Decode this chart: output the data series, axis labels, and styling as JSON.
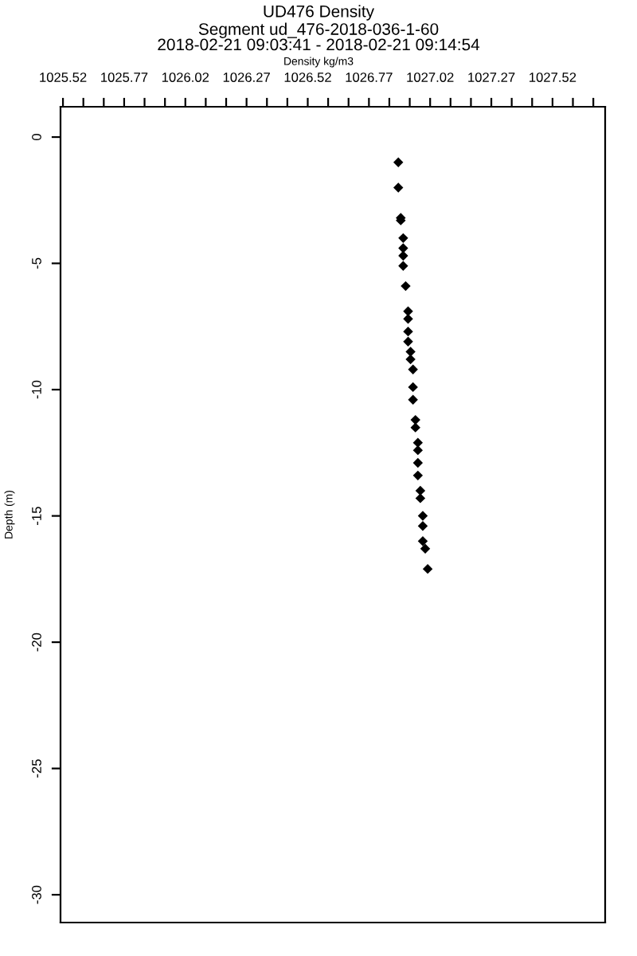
{
  "chart_data": {
    "type": "scatter",
    "title": "UD476 Density",
    "subtitle": "Segment ud_476-2018-036-1-60\n2018-02-21 09:03:41 - 2018-02-21 09:14:54",
    "xlabel": "Density kg/m3",
    "ylabel": "Depth (m)",
    "x": [
      1026.89,
      1026.89,
      1026.9,
      1026.9,
      1026.91,
      1026.91,
      1026.91,
      1026.91,
      1026.92,
      1026.93,
      1026.93,
      1026.93,
      1026.93,
      1026.94,
      1026.94,
      1026.95,
      1026.95,
      1026.95,
      1026.96,
      1026.96,
      1026.97,
      1026.97,
      1026.97,
      1026.97,
      1026.98,
      1026.98,
      1026.99,
      1026.99,
      1026.99,
      1027.0,
      1027.01
    ],
    "series": [
      {
        "color": "#000000",
        "values": [
          -1.0,
          -2.0,
          -3.2,
          -3.3,
          -4.0,
          -4.4,
          -4.7,
          -5.1,
          -5.9,
          -6.9,
          -7.2,
          -7.7,
          -8.1,
          -8.5,
          -8.8,
          -9.2,
          -9.9,
          -10.4,
          -11.2,
          -11.5,
          -12.1,
          -12.4,
          -12.9,
          -13.4,
          -14.0,
          -14.3,
          -15.0,
          -15.4,
          -16.0,
          -16.3,
          -17.1
        ]
      }
    ],
    "xlim": [
      1025.51,
      1027.735
    ],
    "ylim": [
      -31.1,
      1.2
    ],
    "xticks": [
      1025.52,
      {
        "value": 1025.6033,
        "label": null
      },
      {
        "value": 1025.6867,
        "label": null
      },
      1025.77,
      {
        "value": 1025.8533,
        "label": null
      },
      {
        "value": 1025.9367,
        "label": null
      },
      {
        "value": 1026.02,
        "label": "1026.02"
      },
      {
        "value": 1026.1033,
        "label": null
      },
      {
        "value": 1026.1867,
        "label": null
      },
      1026.27,
      {
        "value": 1026.3533,
        "label": null
      },
      {
        "value": 1026.4367,
        "label": null
      },
      1026.52,
      {
        "value": 1026.6033,
        "label": null
      },
      {
        "value": 1026.6867,
        "label": null
      },
      1026.77,
      {
        "value": 1026.8533,
        "label": null
      },
      {
        "value": 1026.9367,
        "label": null
      },
      {
        "value": 1027.02,
        "label": "1027.02"
      },
      {
        "value": 1027.1033,
        "label": null
      },
      {
        "value": 1027.1867,
        "label": null
      },
      1027.27,
      {
        "value": 1027.3533,
        "label": null
      },
      {
        "value": 1027.4367,
        "label": null
      },
      1027.52,
      {
        "value": 1027.6033,
        "label": null
      },
      {
        "value": 1027.6867,
        "label": null
      }
    ],
    "yticks": [
      0,
      -5,
      -10,
      -15,
      -20,
      -25,
      -30
    ],
    "marker": "diamond",
    "grid": false,
    "legend": false
  }
}
